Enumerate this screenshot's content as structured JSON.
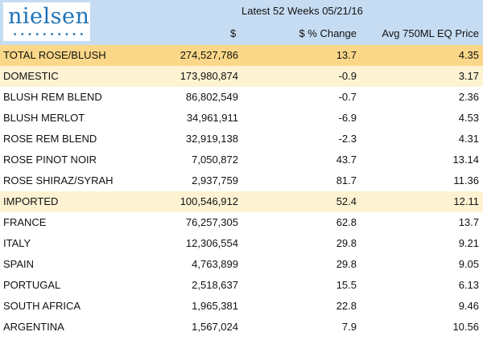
{
  "logo": {
    "text": "nielsen"
  },
  "header": {
    "period": "Latest 52 Weeks 05/21/16",
    "col_dollar": "$",
    "col_pct": "$ % Change",
    "col_avg": "Avg 750ML EQ Price"
  },
  "colors": {
    "header_bg": "#c6dcf2",
    "total_row": "#fbd889",
    "subtotal_row": "#fdf2d2",
    "logo_blue": "#1f73b7"
  },
  "rows": [
    {
      "label": "TOTAL ROSE/BLUSH",
      "dollar": "274,527,786",
      "pct": "13.7",
      "avg": "4.35",
      "style": "total"
    },
    {
      "label": "DOMESTIC",
      "dollar": "173,980,874",
      "pct": "-0.9",
      "avg": "3.17",
      "style": "sub"
    },
    {
      "label": "BLUSH REM BLEND",
      "dollar": "86,802,549",
      "pct": "-0.7",
      "avg": "2.36",
      "style": "plain"
    },
    {
      "label": "BLUSH MERLOT",
      "dollar": "34,961,911",
      "pct": "-6.9",
      "avg": "4.53",
      "style": "plain"
    },
    {
      "label": "ROSE REM BLEND",
      "dollar": "32,919,138",
      "pct": "-2.3",
      "avg": "4.31",
      "style": "plain"
    },
    {
      "label": "ROSE PINOT NOIR",
      "dollar": "7,050,872",
      "pct": "43.7",
      "avg": "13.14",
      "style": "plain"
    },
    {
      "label": "ROSE SHIRAZ/SYRAH",
      "dollar": "2,937,759",
      "pct": "81.7",
      "avg": "11.36",
      "style": "plain"
    },
    {
      "label": "IMPORTED",
      "dollar": "100,546,912",
      "pct": "52.4",
      "avg": "12.11",
      "style": "sub"
    },
    {
      "label": "FRANCE",
      "dollar": "76,257,305",
      "pct": "62.8",
      "avg": "13.7",
      "style": "plain"
    },
    {
      "label": "ITALY",
      "dollar": "12,306,554",
      "pct": "29.8",
      "avg": "9.21",
      "style": "plain"
    },
    {
      "label": "SPAIN",
      "dollar": "4,763,899",
      "pct": "29.8",
      "avg": "9.05",
      "style": "plain"
    },
    {
      "label": "PORTUGAL",
      "dollar": "2,518,637",
      "pct": "15.5",
      "avg": "6.13",
      "style": "plain"
    },
    {
      "label": "SOUTH AFRICA",
      "dollar": "1,965,381",
      "pct": "22.8",
      "avg": "9.46",
      "style": "plain"
    },
    {
      "label": "ARGENTINA",
      "dollar": "1,567,024",
      "pct": "7.9",
      "avg": "10.56",
      "style": "plain"
    }
  ]
}
